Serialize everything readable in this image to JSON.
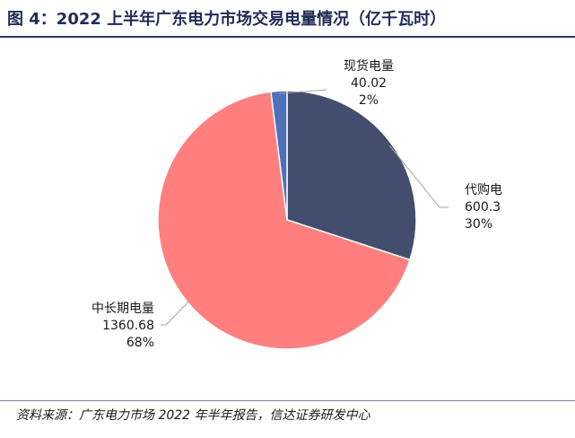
{
  "figure": {
    "title": "图 4：2022 上半年广东电力市场交易电量情况（亿千瓦时）",
    "source": "资料来源：广东电力市场 2022 年半年报告，信达证券研发中心"
  },
  "chart_data": {
    "type": "pie",
    "title": "2022 上半年广东电力市场交易电量情况（亿千瓦时）",
    "unit": "亿千瓦时",
    "slices": [
      {
        "label": "代购电",
        "value": 600.3,
        "value_text": "600.3",
        "percent": "30%",
        "color": "#434e6e"
      },
      {
        "label": "中长期电量",
        "value": 1360.68,
        "value_text": "1360.68",
        "percent": "68%",
        "color": "#ff7f7f"
      },
      {
        "label": "现货电量",
        "value": 40.02,
        "value_text": "40.02",
        "percent": "2%",
        "color": "#4f6fb8"
      }
    ],
    "legend": "none",
    "label_position": "outside"
  }
}
